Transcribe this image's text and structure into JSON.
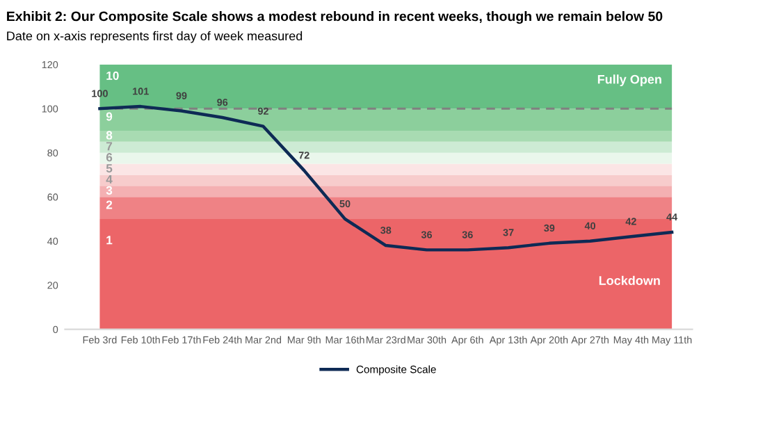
{
  "chart_data": {
    "type": "line",
    "title": "Exhibit 2: Our Composite Scale shows a modest rebound in recent weeks, though we remain below 50",
    "subtitle": "Date on x-axis represents first day of week measured",
    "categories": [
      "Feb 3rd",
      "Feb 10th",
      "Feb 17th",
      "Feb 24th",
      "Mar 2nd",
      "Mar 9th",
      "Mar 16th",
      "Mar 23rd",
      "Mar 30th",
      "Apr 6th",
      "Apr 13th",
      "Apr 20th",
      "Apr 27th",
      "May 4th",
      "May 11th"
    ],
    "series": [
      {
        "name": "Composite Scale",
        "color": "#0e2a55",
        "values": [
          100,
          101,
          99,
          96,
          92,
          72,
          50,
          38,
          36,
          36,
          37,
          39,
          40,
          42,
          44
        ]
      }
    ],
    "ylim": [
      0,
      120
    ],
    "yticks": [
      0,
      20,
      40,
      60,
      80,
      100,
      120
    ],
    "bands": [
      {
        "axis": "y",
        "from": 0,
        "to": 50,
        "label": "1",
        "color": "#ec6568"
      },
      {
        "axis": "y",
        "from": 50,
        "to": 60,
        "label": "2",
        "color": "#ef8285"
      },
      {
        "axis": "y",
        "from": 60,
        "to": 65,
        "label": "3",
        "color": "#f4b0b2"
      },
      {
        "axis": "y",
        "from": 65,
        "to": 70,
        "label": "4",
        "color": "#f7cccc"
      },
      {
        "axis": "y",
        "from": 70,
        "to": 75,
        "label": "5",
        "color": "#fbe5e5"
      },
      {
        "axis": "y",
        "from": 75,
        "to": 80,
        "label": "6",
        "color": "#eaf7ec"
      },
      {
        "axis": "y",
        "from": 80,
        "to": 85,
        "label": "7",
        "color": "#cdebd4"
      },
      {
        "axis": "y",
        "from": 85,
        "to": 90,
        "label": "8",
        "color": "#a8dbb2"
      },
      {
        "axis": "y",
        "from": 90,
        "to": 100,
        "label": "9",
        "color": "#8ccf9c"
      },
      {
        "axis": "y",
        "from": 100,
        "to": 120,
        "label": "10",
        "color": "#66bf84"
      }
    ],
    "ref_lines": [
      {
        "axis": "y",
        "value": 100,
        "color": "#808080",
        "line_style": "dashed"
      }
    ],
    "annotations": [
      "Fully Open",
      "Lockdown"
    ],
    "data_labels": true,
    "legend": "bottom",
    "grid": false,
    "marker": "none",
    "line_style": "solid"
  }
}
